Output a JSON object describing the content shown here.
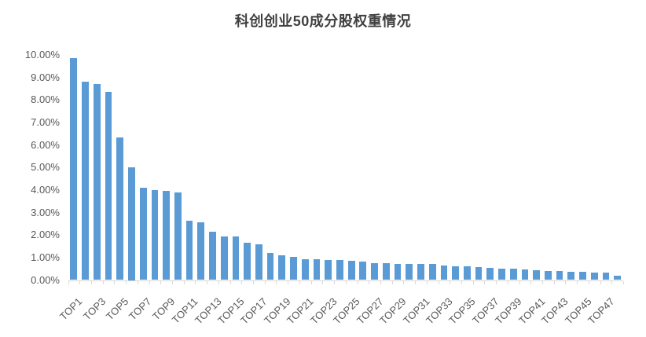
{
  "chart_data": {
    "type": "bar",
    "title": "科创创业50成分股权重情况",
    "categories": [
      "TOP1",
      "TOP2",
      "TOP3",
      "TOP4",
      "TOP5",
      "TOP6",
      "TOP7",
      "TOP8",
      "TOP9",
      "TOP10",
      "TOP11",
      "TOP12",
      "TOP13",
      "TOP14",
      "TOP15",
      "TOP16",
      "TOP17",
      "TOP18",
      "TOP19",
      "TOP20",
      "TOP21",
      "TOP22",
      "TOP23",
      "TOP24",
      "TOP25",
      "TOP26",
      "TOP27",
      "TOP28",
      "TOP29",
      "TOP30",
      "TOP31",
      "TOP32",
      "TOP33",
      "TOP34",
      "TOP35",
      "TOP36",
      "TOP37",
      "TOP38",
      "TOP39",
      "TOP40",
      "TOP41",
      "TOP42",
      "TOP43",
      "TOP44",
      "TOP45",
      "TOP46",
      "TOP47",
      "TOP48"
    ],
    "values": [
      9.85,
      8.8,
      8.7,
      8.35,
      6.35,
      5.0,
      4.1,
      4.0,
      3.95,
      3.9,
      2.62,
      2.58,
      2.16,
      1.95,
      1.93,
      1.66,
      1.6,
      1.21,
      1.1,
      1.02,
      0.94,
      0.91,
      0.9,
      0.9,
      0.84,
      0.81,
      0.76,
      0.74,
      0.73,
      0.72,
      0.71,
      0.7,
      0.65,
      0.62,
      0.6,
      0.58,
      0.55,
      0.52,
      0.5,
      0.46,
      0.45,
      0.4,
      0.4,
      0.37,
      0.35,
      0.34,
      0.32,
      0.2
    ],
    "ylabel": "",
    "xlabel": "",
    "ylim": [
      0,
      10
    ],
    "y_unit": "%",
    "y_tick_labels": [
      "0.00%",
      "1.00%",
      "2.00%",
      "3.00%",
      "4.00%",
      "5.00%",
      "6.00%",
      "7.00%",
      "8.00%",
      "9.00%",
      "10.00%"
    ],
    "x_tick_labels": [
      "TOP1",
      "TOP3",
      "TOP5",
      "TOP7",
      "TOP9",
      "TOP11",
      "TOP13",
      "TOP15",
      "TOP17",
      "TOP19",
      "TOP21",
      "TOP23",
      "TOP25",
      "TOP27",
      "TOP29",
      "TOP31",
      "TOP33",
      "TOP35",
      "TOP37",
      "TOP39",
      "TOP41",
      "TOP43",
      "TOP45",
      "TOP47"
    ],
    "x_tick_interval": 2,
    "grid": false,
    "legend": false,
    "bar_color": "#5B9BD5",
    "axis_color": "#D9D9D9",
    "label_color": "#595959",
    "title_color": "#404040"
  }
}
